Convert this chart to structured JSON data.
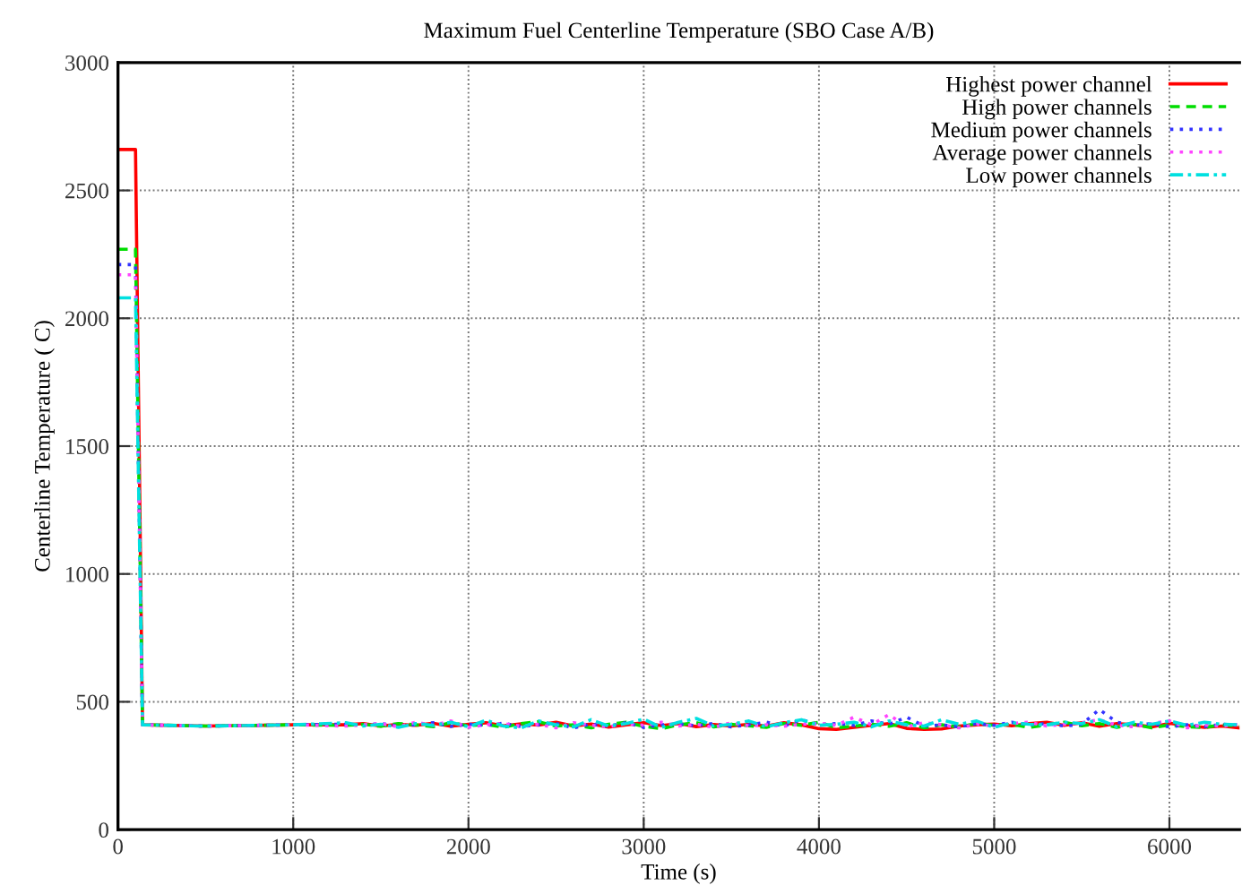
{
  "chart_data": {
    "type": "line",
    "title": "Maximum Fuel Centerline Temperature (SBO Case A/B)",
    "xlabel": "Time (s)",
    "ylabel": "Centerline Temperature ( C)",
    "x": [
      0,
      100,
      140,
      500,
      1000,
      1300,
      1400,
      1500,
      1600,
      1700,
      1800,
      1900,
      2000,
      2100,
      2200,
      2300,
      2400,
      2500,
      2600,
      2700,
      2800,
      2900,
      3000,
      3100,
      3200,
      3300,
      3400,
      3500,
      3600,
      3700,
      3800,
      3900,
      4000,
      4100,
      4200,
      4300,
      4400,
      4500,
      4600,
      4700,
      4800,
      4900,
      5000,
      5100,
      5200,
      5300,
      5400,
      5500,
      5600,
      5700,
      5800,
      5900,
      6000,
      6100,
      6200,
      6300,
      6400
    ],
    "series": [
      {
        "name": "Highest power channel",
        "color": "#ff0000",
        "line_style": "solid",
        "values": [
          2660,
          2660,
          410,
          405,
          410,
          410,
          415,
          405,
          412,
          408,
          416,
          404,
          412,
          418,
          406,
          414,
          409,
          420,
          405,
          413,
          401,
          410,
          418,
          407,
          415,
          403,
          411,
          405,
          412,
          405,
          418,
          410,
          395,
          392,
          400,
          408,
          415,
          396,
          392,
          394,
          405,
          410,
          413,
          406,
          415,
          420,
          408,
          418,
          404,
          415,
          410,
          402,
          416,
          408,
          400,
          405,
          398
        ]
      },
      {
        "name": "High power channels",
        "color": "#00dd00",
        "line_style": "dashed",
        "values": [
          2270,
          2270,
          410,
          405,
          410,
          408,
          412,
          404,
          415,
          410,
          403,
          418,
          406,
          412,
          400,
          415,
          422,
          405,
          410,
          398,
          412,
          420,
          404,
          395,
          410,
          418,
          402,
          412,
          406,
          400,
          415,
          408,
          420,
          398,
          405,
          412,
          404,
          418,
          398,
          410,
          402,
          415,
          408,
          412,
          400,
          410,
          420,
          406,
          415,
          400,
          412,
          398,
          410,
          402,
          400,
          410,
          405
        ]
      },
      {
        "name": "Medium power channels",
        "color": "#3333ff",
        "line_style": "dotted",
        "values": [
          2210,
          2210,
          410,
          405,
          410,
          412,
          408,
          415,
          405,
          410,
          418,
          404,
          412,
          408,
          416,
          403,
          410,
          415,
          398,
          412,
          405,
          418,
          400,
          410,
          413,
          406,
          415,
          402,
          410,
          420,
          405,
          430,
          410,
          415,
          408,
          425,
          412,
          440,
          405,
          410,
          402,
          415,
          408,
          420,
          410,
          415,
          405,
          412,
          470,
          420,
          408,
          415,
          402,
          410,
          403,
          412,
          408
        ]
      },
      {
        "name": "Average power channels",
        "color": "#ff44ff",
        "line_style": "dotted",
        "values": [
          2170,
          2170,
          410,
          405,
          410,
          405,
          410,
          415,
          402,
          420,
          408,
          425,
          400,
          410,
          415,
          405,
          412,
          398,
          418,
          408,
          402,
          415,
          408,
          420,
          405,
          412,
          400,
          418,
          406,
          410,
          404,
          412,
          416,
          408,
          440,
          410,
          450,
          402,
          418,
          410,
          398,
          412,
          406,
          415,
          420,
          405,
          412,
          418,
          430,
          408,
          402,
          415,
          425,
          398,
          410,
          405,
          412
        ]
      },
      {
        "name": "Low power channels",
        "color": "#00e0e0",
        "line_style": "dashdot",
        "values": [
          2080,
          2080,
          410,
          405,
          410,
          418,
          405,
          412,
          400,
          415,
          408,
          420,
          402,
          428,
          405,
          398,
          425,
          410,
          402,
          430,
          405,
          415,
          432,
          400,
          420,
          435,
          405,
          412,
          425,
          402,
          418,
          430,
          408,
          412,
          420,
          402,
          425,
          410,
          405,
          430,
          412,
          425,
          400,
          418,
          412,
          410,
          420,
          415,
          430,
          402,
          420,
          412,
          425,
          408,
          420,
          412,
          410
        ]
      }
    ],
    "xlim": [
      0,
      6400
    ],
    "ylim": [
      0,
      3000
    ],
    "xticks": [
      0,
      1000,
      2000,
      3000,
      4000,
      5000,
      6000
    ],
    "yticks": [
      0,
      500,
      1000,
      1500,
      2000,
      2500,
      3000
    ],
    "grid": true,
    "legend": "top right"
  }
}
